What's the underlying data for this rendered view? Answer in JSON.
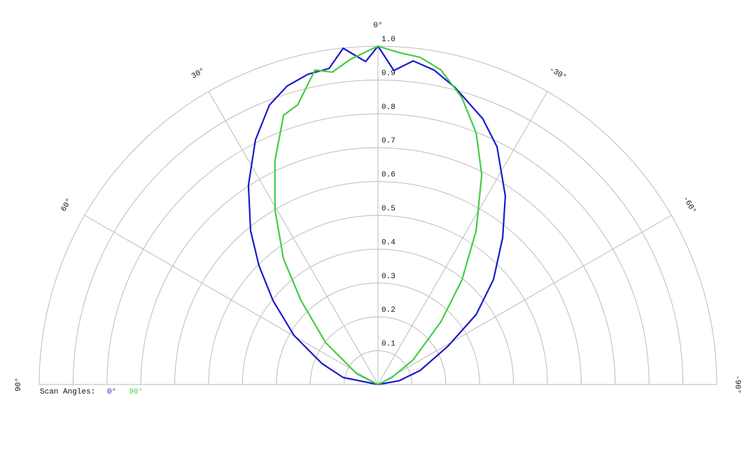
{
  "chart_data": {
    "type": "polar",
    "rlim": [
      0,
      1
    ],
    "rticks": [
      0.1,
      0.2,
      0.3,
      0.4,
      0.5,
      0.6,
      0.7,
      0.8,
      0.9,
      {
        "value": 1,
        "label": "1.0"
      }
    ],
    "thetalim": [
      -90,
      90
    ],
    "thetaticks": [
      {
        "value": 90,
        "label": "90°"
      },
      {
        "value": 60,
        "label": "60°"
      },
      {
        "value": 30,
        "label": "30°"
      },
      {
        "value": 0,
        "label": "0°"
      },
      {
        "value": -30,
        "label": "-30°"
      },
      {
        "value": -60,
        "label": "-60°"
      },
      {
        "value": -90,
        "label": "-90°"
      }
    ],
    "grid": true,
    "legend_title": "Scan Angles:",
    "series": [
      {
        "name": "0°",
        "color": "#1a1acc",
        "theta": [
          90,
          78.7,
          69.4,
          59.7,
          51.3,
          45,
          39.6,
          33,
          26.6,
          21.2,
          16.9,
          12.7,
          8.8,
          5.9,
          2.2,
          0,
          -2.9,
          -6.2,
          -10.1,
          -14.5,
          -21.5,
          -26.6,
          -34,
          -40.3,
          -47.7,
          -54.5,
          -61.2,
          -71.6,
          -80,
          -90
        ],
        "values": [
          0,
          0.105,
          0.177,
          0.287,
          0.397,
          0.497,
          0.59,
          0.702,
          0.808,
          0.886,
          0.922,
          0.94,
          0.945,
          0.999,
          0.955,
          1.0,
          0.929,
          0.962,
          0.944,
          0.907,
          0.844,
          0.785,
          0.672,
          0.569,
          0.461,
          0.356,
          0.236,
          0.131,
          0.063,
          0
        ]
      },
      {
        "name": "90°",
        "color": "#44cc44",
        "theta": [
          90,
          63.4,
          51.3,
          42.5,
          36.9,
          30.5,
          24.7,
          19.3,
          16,
          11.3,
          8.3,
          4.9,
          0,
          -3.6,
          -7.3,
          -11.3,
          -16.3,
          -21.3,
          -26.3,
          -32.5,
          -38.7,
          -45,
          -55,
          -63,
          -90
        ],
        "values": [
          0,
          0.069,
          0.198,
          0.336,
          0.465,
          0.599,
          0.728,
          0.843,
          0.86,
          0.948,
          0.933,
          0.964,
          1.0,
          0.983,
          0.975,
          0.948,
          0.883,
          0.798,
          0.691,
          0.539,
          0.397,
          0.263,
          0.126,
          0.046,
          0
        ]
      }
    ]
  }
}
